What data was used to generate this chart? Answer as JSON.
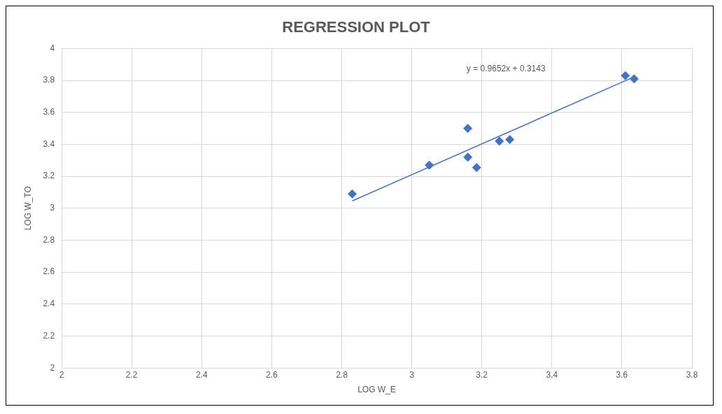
{
  "chart_data": {
    "type": "scatter",
    "title": "REGRESSION PLOT",
    "xlabel": "LOG W_E",
    "ylabel": "LOG W_TO",
    "xlim": [
      2,
      3.8
    ],
    "xticks": [
      2,
      2.2,
      2.4,
      2.6,
      2.8,
      3,
      3.2,
      3.4,
      3.6,
      3.8
    ],
    "ylim": [
      2,
      4
    ],
    "yticks": [
      2,
      2.2,
      2.4,
      2.6,
      2.8,
      3,
      3.2,
      3.4,
      3.6,
      3.8,
      4
    ],
    "grid": true,
    "legend": false,
    "marker": "diamond",
    "series": [
      {
        "color": "#4472c4",
        "x": [
          2.83,
          3.05,
          3.16,
          3.16,
          3.185,
          3.25,
          3.28,
          3.61,
          3.635
        ],
        "values": [
          3.09,
          3.27,
          3.5,
          3.32,
          3.255,
          3.42,
          3.43,
          3.83,
          3.81
        ]
      },
      {
        "type": "line",
        "color": "#4472c4",
        "marker": "none",
        "line_style": "solid",
        "x": [
          2.83,
          3.635
        ],
        "values": [
          3.046,
          3.823
        ]
      }
    ],
    "annotations": [
      "y = 0.9652x + 0.3143"
    ]
  }
}
